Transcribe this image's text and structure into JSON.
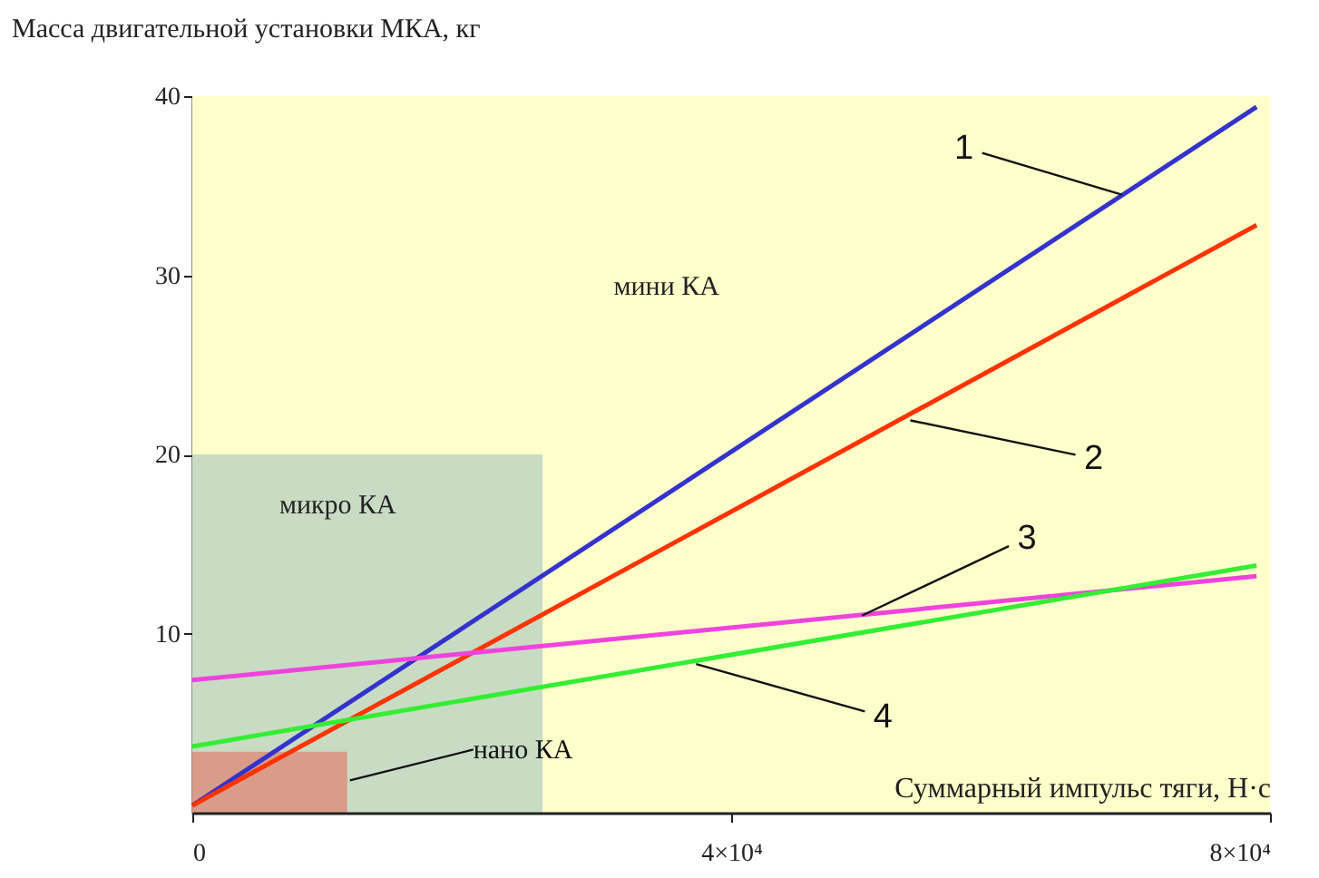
{
  "chart_data": {
    "type": "line",
    "xlabel": "Суммарный импульс тяги, Н·с",
    "ylabel": "Масса двигательной установки МКА, кг",
    "xlim": [
      0,
      80000
    ],
    "ylim": [
      0,
      40
    ],
    "xticks": [
      0,
      {
        "value": 40000,
        "label": "4×10⁴"
      },
      {
        "value": 80000,
        "label": "8×10⁴"
      }
    ],
    "yticks": [
      10,
      20,
      30,
      40
    ],
    "grid": false,
    "marker": "none",
    "line_style": "solid",
    "bands": [
      {
        "axis": "x",
        "from": 0,
        "to": 80000,
        "color": "#ffffcc"
      }
    ],
    "series": [
      {
        "type": "area",
        "color": "#c8dcc4",
        "x": [
          0,
          26000
        ],
        "values": [
          20,
          20
        ]
      },
      {
        "type": "area",
        "color": "#d99c88",
        "x": [
          0,
          11500
        ],
        "values": [
          3.4,
          3.4
        ]
      },
      {
        "color": "#3333cc",
        "x": [
          0,
          79000
        ],
        "values": [
          0.4,
          39.4
        ]
      },
      {
        "color": "#ff3300",
        "x": [
          0,
          79000
        ],
        "values": [
          0.4,
          32.8
        ]
      },
      {
        "color": "#ee44dd",
        "x": [
          0,
          79000
        ],
        "values": [
          7.4,
          13.2
        ]
      },
      {
        "color": "#33ee33",
        "x": [
          0,
          79000
        ],
        "values": [
          3.7,
          13.8
        ]
      }
    ],
    "annotations": [
      "мини КА",
      "микро КА",
      {
        "text": "нано КА",
        "x": 11700,
        "y": 1.8
      },
      {
        "text": "1",
        "x": 69000,
        "y": 34.5
      },
      {
        "text": "2",
        "x": 53300,
        "y": 21.9
      },
      {
        "text": "3",
        "x": 49700,
        "y": 11
      },
      {
        "text": "4",
        "x": 37400,
        "y": 8.3
      }
    ]
  }
}
